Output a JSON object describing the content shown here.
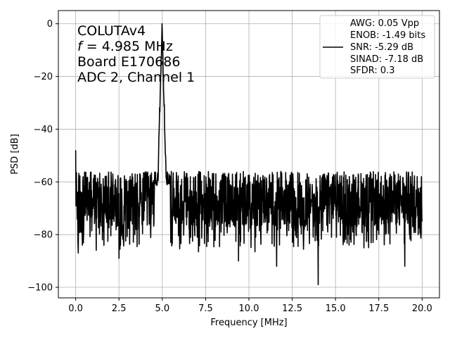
{
  "chart_data": {
    "type": "line",
    "xlabel": "Frequency [MHz]",
    "ylabel": "PSD [dB]",
    "xlim": [
      -1.0,
      21.0
    ],
    "ylim": [
      -104.0,
      5.0
    ],
    "xticks": [
      0.0,
      2.5,
      5.0,
      7.5,
      10.0,
      12.5,
      15.0,
      17.5,
      20.0
    ],
    "xtick_labels": [
      "0.0",
      "2.5",
      "5.0",
      "7.5",
      "10.0",
      "12.5",
      "15.0",
      "17.5",
      "20.0"
    ],
    "yticks": [
      0,
      -20,
      -40,
      -60,
      -80,
      -100
    ],
    "ytick_labels": [
      "0",
      "−20",
      "−40",
      "−60",
      "−80",
      "−100"
    ],
    "grid": true,
    "annotation_lines": [
      "COLUTAv4",
      "f = 4.985 MHz",
      "Board E170686",
      "ADC 2, Channel 1"
    ],
    "legend": {
      "placement": "top-right",
      "lines": [
        "AWG: 0.05 Vpp",
        "ENOB: -1.49 bits",
        "SNR: -5.29 dB",
        "SINAD: -7.18 dB",
        "SFDR: 0.3"
      ]
    },
    "series": [
      {
        "color": "#000000",
        "x_range": [
          0.0,
          20.0
        ],
        "num_points": 1400,
        "peak_frequency": 4.985,
        "peak_value": 0.0,
        "noise_floor_range": [
          -77.0,
          -56.0
        ],
        "notable_points": [
          {
            "x": 0.0,
            "y": -48
          },
          {
            "x": 0.15,
            "y": -87
          },
          {
            "x": 2.5,
            "y": -89
          },
          {
            "x": 4.985,
            "y": 0
          },
          {
            "x": 9.4,
            "y": -90
          },
          {
            "x": 11.6,
            "y": -92
          },
          {
            "x": 14.0,
            "y": -99
          },
          {
            "x": 19.0,
            "y": -92
          }
        ]
      }
    ]
  }
}
